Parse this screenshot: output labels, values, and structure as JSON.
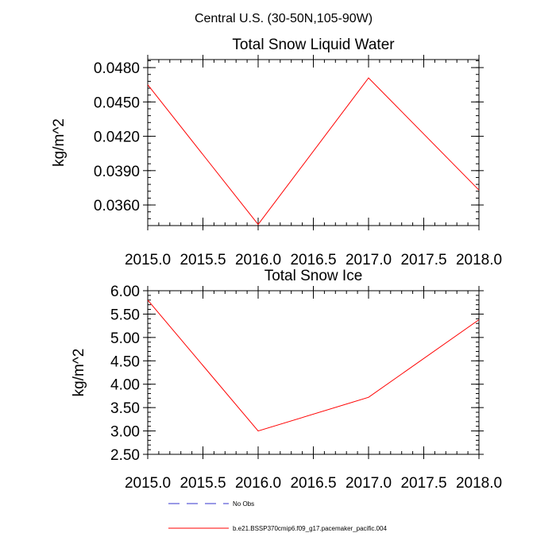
{
  "figure_title": "Central U.S. (30-50N,105-90W)",
  "chart_data": [
    {
      "type": "line",
      "title": "Total Snow Liquid Water",
      "xlabel": "",
      "ylabel": "kg/m^2",
      "xlim": [
        2015.0,
        2018.0
      ],
      "ylim": [
        0.0342,
        0.0487
      ],
      "x_ticks": [
        "2015.0",
        "2015.5",
        "2016.0",
        "2016.5",
        "2017.0",
        "2017.5",
        "2018.0"
      ],
      "y_ticks": [
        "0.0480",
        "0.0450",
        "0.0420",
        "0.0390",
        "0.0360"
      ],
      "y_tick_values": [
        0.048,
        0.045,
        0.042,
        0.039,
        0.036
      ],
      "x": [
        2015,
        2016,
        2017,
        2018
      ],
      "series": [
        {
          "name": "b.e21.BSSP370cmip6.f09_g17.pacemaker_pacific.004",
          "color": "#ff0000",
          "values": [
            0.0465,
            0.0343,
            0.0471,
            0.0373
          ]
        }
      ]
    },
    {
      "type": "line",
      "title": "Total Snow Ice",
      "xlabel": "",
      "ylabel": "kg/m^2",
      "xlim": [
        2015.0,
        2018.0
      ],
      "ylim": [
        2.5,
        6.0
      ],
      "x_ticks": [
        "2015.0",
        "2015.5",
        "2016.0",
        "2016.5",
        "2017.0",
        "2017.5",
        "2018.0"
      ],
      "y_ticks": [
        "6.00",
        "5.50",
        "5.00",
        "4.50",
        "4.00",
        "3.50",
        "3.00",
        "2.50"
      ],
      "y_tick_values": [
        6.0,
        5.5,
        5.0,
        4.5,
        4.0,
        3.5,
        3.0,
        2.5
      ],
      "x": [
        2015,
        2016,
        2017,
        2018
      ],
      "series": [
        {
          "name": "b.e21.BSSP370cmip6.f09_g17.pacemaker_pacific.004",
          "color": "#ff0000",
          "values": [
            5.8,
            3.0,
            3.72,
            5.38
          ]
        }
      ]
    }
  ],
  "legend": [
    {
      "label": "No Obs",
      "color": "#3333cc",
      "style": "dashed"
    },
    {
      "label": "b.e21.BSSP370cmip6.f09_g17.pacemaker_pacific.004",
      "color": "#ff0000",
      "style": "solid"
    }
  ]
}
